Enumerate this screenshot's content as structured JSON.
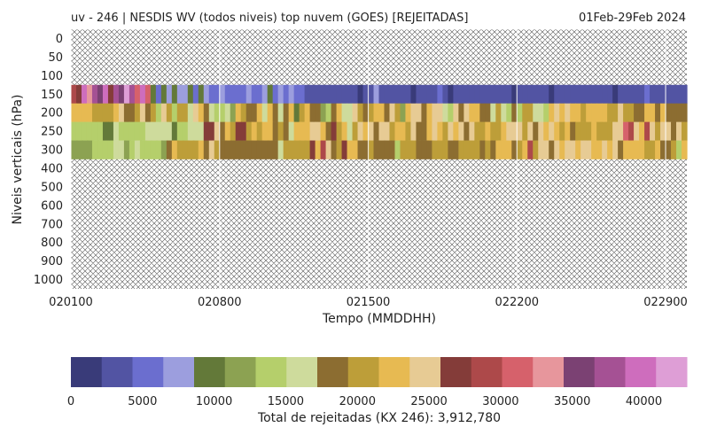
{
  "header": {
    "title": "uv - 246 | NESDIS WV (todos niveis) top nuvem (GOES) [REJEITADAS]",
    "period": "01Feb-29Feb 2024"
  },
  "chart_data": {
    "type": "heatmap",
    "title": "uv - 246 | NESDIS WV (todos niveis) top nuvem (GOES) [REJEITADAS]",
    "subtitle": "01Feb-29Feb 2024",
    "xlabel": "Tempo (MMDDHH)",
    "ylabel": "Niveis verticais (hPa)",
    "x_ticks": [
      "020100",
      "020800",
      "021500",
      "022200",
      "022900"
    ],
    "y_levels": [
      0,
      50,
      100,
      150,
      200,
      250,
      300,
      400,
      500,
      600,
      700,
      800,
      900,
      1000
    ],
    "time_start": "020100",
    "time_end": "022918",
    "time_step_hours": 6,
    "time_steps": 116,
    "levels_with_data": [
      150,
      200,
      250,
      300
    ],
    "missing_value_pattern": "hatched",
    "colorbar": {
      "label": "Total de rejeitadas (KX 246): 3,912,780",
      "ticks": [
        0,
        5000,
        10000,
        15000,
        20000,
        25000,
        30000,
        35000,
        40000
      ],
      "vmin": 0,
      "vmax": 43000,
      "colors": [
        "#393b79",
        "#5254a3",
        "#6b6ecf",
        "#9c9ede",
        "#637939",
        "#8ca252",
        "#b5cf6b",
        "#cedb9c",
        "#8c6d31",
        "#bd9e39",
        "#e7ba52",
        "#e7cb94",
        "#843c39",
        "#ad494a",
        "#d6616b",
        "#e7969c",
        "#7b4173",
        "#a55194",
        "#ce6dbd",
        "#de9ed6"
      ]
    },
    "rows": {
      "150": [
        13,
        12,
        18,
        15,
        17,
        16,
        18,
        12,
        17,
        16,
        19,
        17,
        14,
        18,
        14,
        4,
        2,
        4,
        3,
        4,
        3,
        3,
        4,
        2,
        4,
        3,
        2,
        2,
        3,
        2,
        2,
        2,
        2,
        3,
        2,
        2,
        3,
        4,
        2,
        3,
        2,
        3,
        2,
        2,
        1,
        1,
        1,
        1,
        1,
        1,
        1,
        1,
        1,
        1,
        0,
        1,
        1,
        3,
        1,
        1,
        1,
        1,
        1,
        1,
        0,
        1,
        1,
        1,
        1,
        2,
        1,
        0,
        1,
        1,
        1,
        1,
        1,
        1,
        1,
        1,
        1,
        1,
        1,
        0,
        1,
        1,
        1,
        1,
        1,
        1,
        0,
        1,
        1,
        1,
        1,
        1,
        1,
        1,
        1,
        1,
        1,
        1,
        0,
        1,
        1,
        1,
        1,
        1,
        2,
        1,
        1,
        1,
        1,
        1,
        1,
        1
      ],
      "200": [
        10,
        10,
        10,
        10,
        9,
        9,
        9,
        9,
        10,
        11,
        8,
        8,
        9,
        11,
        8,
        9,
        6,
        11,
        9,
        6,
        9,
        9,
        7,
        11,
        10,
        8,
        7,
        6,
        6,
        7,
        5,
        10,
        9,
        8,
        8,
        10,
        7,
        10,
        8,
        7,
        8,
        10,
        4,
        9,
        10,
        8,
        8,
        5,
        6,
        8,
        10,
        7,
        7,
        11,
        9,
        8,
        9,
        10,
        10,
        8,
        11,
        9,
        5,
        10,
        11,
        11,
        8,
        10,
        11,
        11,
        7,
        6,
        11,
        8,
        11,
        10,
        10,
        8,
        8,
        7,
        9,
        7,
        6,
        8,
        6,
        9,
        9,
        7,
        7,
        6,
        10,
        11,
        10,
        11,
        10,
        10,
        9,
        10,
        10,
        10,
        10,
        9,
        9,
        11,
        9,
        9,
        8,
        8,
        10,
        10,
        8,
        10,
        8,
        8,
        8,
        8
      ],
      "250": [
        6,
        6,
        6,
        6,
        6,
        6,
        4,
        4,
        7,
        6,
        6,
        6,
        6,
        6,
        7,
        7,
        7,
        7,
        7,
        4,
        6,
        6,
        7,
        7,
        7,
        12,
        12,
        11,
        8,
        10,
        9,
        12,
        12,
        9,
        10,
        9,
        10,
        10,
        8,
        9,
        8,
        7,
        10,
        10,
        10,
        11,
        11,
        10,
        8,
        12,
        9,
        10,
        7,
        9,
        11,
        10,
        11,
        8,
        11,
        11,
        9,
        10,
        10,
        9,
        11,
        8,
        8,
        10,
        11,
        10,
        9,
        11,
        10,
        11,
        8,
        11,
        9,
        9,
        10,
        9,
        9,
        10,
        11,
        11,
        11,
        9,
        11,
        8,
        11,
        10,
        11,
        10,
        9,
        10,
        8,
        9,
        9,
        9,
        10,
        9,
        9,
        9,
        11,
        11,
        14,
        13,
        11,
        10,
        13,
        11,
        9,
        11,
        11,
        8,
        11,
        9
      ],
      "300": [
        5,
        5,
        5,
        5,
        6,
        6,
        6,
        6,
        7,
        7,
        5,
        6,
        7,
        6,
        6,
        6,
        6,
        5,
        8,
        10,
        9,
        9,
        9,
        9,
        10,
        8,
        11,
        9,
        8,
        8,
        8,
        8,
        8,
        8,
        8,
        8,
        8,
        8,
        8,
        7,
        9,
        9,
        9,
        9,
        9,
        12,
        10,
        13,
        11,
        8,
        9,
        12,
        10,
        10,
        8,
        8,
        9,
        8,
        8,
        8,
        8,
        6,
        9,
        9,
        9,
        8,
        8,
        8,
        9,
        9,
        9,
        8,
        8,
        9,
        9,
        9,
        9,
        8,
        9,
        8,
        10,
        10,
        10,
        8,
        9,
        10,
        13,
        9,
        11,
        11,
        8,
        11,
        10,
        11,
        11,
        10,
        11,
        11,
        10,
        10,
        11,
        10,
        11,
        8,
        10,
        10,
        10,
        10,
        9,
        9,
        10,
        8,
        8,
        9,
        6,
        10
      ]
    }
  }
}
